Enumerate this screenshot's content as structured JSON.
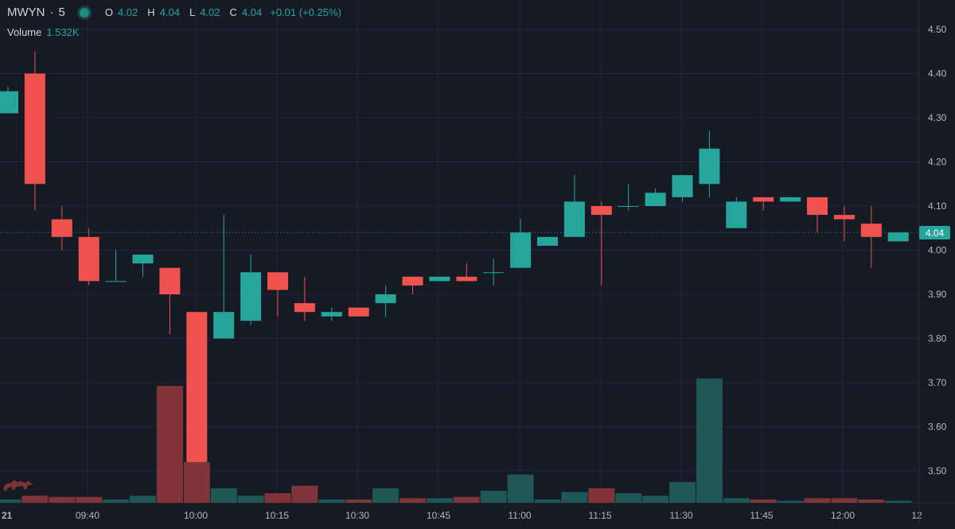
{
  "legend": {
    "symbol": "MWYN",
    "interval": "5",
    "open_label": "O",
    "open": "4.02",
    "high_label": "H",
    "high": "4.04",
    "low_label": "L",
    "low": "4.02",
    "close_label": "C",
    "close": "4.04",
    "change": "+0.01 (+0.25%)"
  },
  "volume_legend": {
    "label": "Volume",
    "value": "1.532K"
  },
  "last_price": "4.04",
  "colors": {
    "background": "#161a25",
    "up": "#26a69a",
    "down": "#ef5350",
    "volume_up": "#1f5752",
    "volume_down": "#803437",
    "grid": "#242733",
    "text": "#b2b5be"
  },
  "chart_data": {
    "type": "candlestick",
    "interval_minutes": 5,
    "y_ticks": [
      "3.50",
      "3.60",
      "3.70",
      "3.80",
      "3.90",
      "4.00",
      "4.10",
      "4.20",
      "4.30",
      "4.40",
      "4.50"
    ],
    "ylim": [
      3.47,
      4.525
    ],
    "x_ticks": [
      "21",
      "09:40",
      "10:00",
      "10:15",
      "10:30",
      "10:45",
      "11:00",
      "11:15",
      "11:30",
      "11:45",
      "12:00",
      "12"
    ],
    "grid": true,
    "candles": [
      {
        "time": "09:30",
        "open": 4.31,
        "high": 4.37,
        "low": 4.31,
        "close": 4.36,
        "volume": "low"
      },
      {
        "time": "09:35",
        "open": 4.4,
        "high": 4.45,
        "low": 4.09,
        "close": 4.15,
        "volume": "low"
      },
      {
        "time": "09:40",
        "open": 4.07,
        "high": 4.1,
        "low": 4.0,
        "close": 4.03,
        "volume": "low"
      },
      {
        "time": "09:45",
        "open": 4.03,
        "high": 4.05,
        "low": 3.92,
        "close": 3.93,
        "volume": "low"
      },
      {
        "time": "09:50",
        "open": 3.93,
        "high": 4.0,
        "low": 3.93,
        "close": 3.93,
        "volume": "low"
      },
      {
        "time": "09:55",
        "open": 3.97,
        "high": 3.99,
        "low": 3.94,
        "close": 3.99,
        "volume": "low"
      },
      {
        "time": "10:00",
        "open": 3.96,
        "high": 3.96,
        "low": 3.81,
        "close": 3.9,
        "volume": "high"
      },
      {
        "time": "10:05",
        "open": 3.86,
        "high": 3.86,
        "low": 3.52,
        "close": 3.52,
        "volume": "mid"
      },
      {
        "time": "10:10",
        "open": 3.8,
        "high": 4.08,
        "low": 3.8,
        "close": 3.86,
        "volume": "low"
      },
      {
        "time": "10:15",
        "open": 3.84,
        "high": 3.99,
        "low": 3.83,
        "close": 3.95,
        "volume": "low"
      },
      {
        "time": "10:20",
        "open": 3.95,
        "high": 3.95,
        "low": 3.85,
        "close": 3.91,
        "volume": "low"
      },
      {
        "time": "10:25",
        "open": 3.88,
        "high": 3.94,
        "low": 3.84,
        "close": 3.86,
        "volume": "low"
      },
      {
        "time": "10:30",
        "open": 3.85,
        "high": 3.87,
        "low": 3.84,
        "close": 3.86,
        "volume": "low"
      },
      {
        "time": "10:35",
        "open": 3.87,
        "high": 3.87,
        "low": 3.85,
        "close": 3.85,
        "volume": "low"
      },
      {
        "time": "10:40",
        "open": 3.88,
        "high": 3.92,
        "low": 3.85,
        "close": 3.9,
        "volume": "low"
      },
      {
        "time": "10:45",
        "open": 3.94,
        "high": 3.94,
        "low": 3.9,
        "close": 3.92,
        "volume": "low"
      },
      {
        "time": "10:50",
        "open": 3.93,
        "high": 3.94,
        "low": 3.93,
        "close": 3.94,
        "volume": "low"
      },
      {
        "time": "10:55",
        "open": 3.94,
        "high": 3.97,
        "low": 3.93,
        "close": 3.93,
        "volume": "low"
      },
      {
        "time": "11:00",
        "open": 3.95,
        "high": 3.98,
        "low": 3.92,
        "close": 3.95,
        "volume": "low"
      },
      {
        "time": "11:05",
        "open": 3.96,
        "high": 4.07,
        "low": 3.96,
        "close": 4.04,
        "volume": "low"
      },
      {
        "time": "11:10",
        "open": 4.01,
        "high": 4.03,
        "low": 4.01,
        "close": 4.03,
        "volume": "low"
      },
      {
        "time": "11:15",
        "open": 4.03,
        "high": 4.17,
        "low": 4.03,
        "close": 4.11,
        "volume": "low"
      },
      {
        "time": "11:20",
        "open": 4.1,
        "high": 4.11,
        "low": 3.92,
        "close": 4.08,
        "volume": "low"
      },
      {
        "time": "11:25",
        "open": 4.1,
        "high": 4.15,
        "low": 4.09,
        "close": 4.1,
        "volume": "low"
      },
      {
        "time": "11:30",
        "open": 4.1,
        "high": 4.14,
        "low": 4.1,
        "close": 4.13,
        "volume": "low"
      },
      {
        "time": "11:35",
        "open": 4.12,
        "high": 4.17,
        "low": 4.11,
        "close": 4.17,
        "volume": "low"
      },
      {
        "time": "11:40",
        "open": 4.15,
        "high": 4.27,
        "low": 4.12,
        "close": 4.23,
        "volume": "high"
      },
      {
        "time": "11:45",
        "open": 4.05,
        "high": 4.12,
        "low": 4.05,
        "close": 4.11,
        "volume": "low"
      },
      {
        "time": "11:50",
        "open": 4.12,
        "high": 4.12,
        "low": 4.09,
        "close": 4.11,
        "volume": "low"
      },
      {
        "time": "11:55",
        "open": 4.11,
        "high": 4.12,
        "low": 4.11,
        "close": 4.12,
        "volume": "low"
      },
      {
        "time": "12:00",
        "open": 4.12,
        "high": 4.12,
        "low": 4.04,
        "close": 4.08,
        "volume": "low"
      },
      {
        "time": "12:05",
        "open": 4.08,
        "high": 4.1,
        "low": 4.02,
        "close": 4.07,
        "volume": "low"
      },
      {
        "time": "12:10",
        "open": 4.06,
        "high": 4.1,
        "low": 3.96,
        "close": 4.03,
        "volume": "low"
      },
      {
        "time": "12:15",
        "open": 4.02,
        "high": 4.04,
        "low": 4.02,
        "close": 4.04,
        "volume": "low"
      }
    ],
    "volume_levels": {
      "low": 0.04,
      "mid": 0.27,
      "high": 0.92
    },
    "volume_relative": [
      0.02,
      0.05,
      0.04,
      0.04,
      0.02,
      0.05,
      0.93,
      0.32,
      0.11,
      0.05,
      0.07,
      0.13,
      0.02,
      0.02,
      0.11,
      0.03,
      0.03,
      0.04,
      0.09,
      0.22,
      0.02,
      0.08,
      0.11,
      0.07,
      0.05,
      0.16,
      0.99,
      0.03,
      0.02,
      0.01,
      0.03,
      0.03,
      0.02,
      0.01
    ]
  }
}
